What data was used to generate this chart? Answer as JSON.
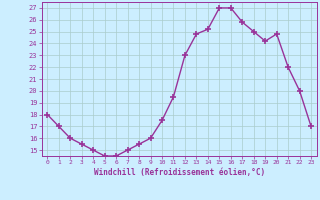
{
  "x": [
    0,
    1,
    2,
    3,
    4,
    5,
    6,
    7,
    8,
    9,
    10,
    11,
    12,
    13,
    14,
    15,
    16,
    17,
    18,
    19,
    20,
    21,
    22,
    23
  ],
  "y": [
    18,
    17,
    16,
    15.5,
    15,
    14.5,
    14.5,
    15,
    15.5,
    16,
    17.5,
    19.5,
    23,
    24.8,
    25.2,
    27,
    27,
    25.8,
    25,
    24.2,
    24.8,
    22,
    20,
    17
  ],
  "xlabel": "Windchill (Refroidissement éolien,°C)",
  "ylim": [
    14.5,
    27.5
  ],
  "xlim": [
    -0.5,
    23.5
  ],
  "yticks": [
    15,
    16,
    17,
    18,
    19,
    20,
    21,
    22,
    23,
    24,
    25,
    26,
    27
  ],
  "xticks": [
    0,
    1,
    2,
    3,
    4,
    5,
    6,
    7,
    8,
    9,
    10,
    11,
    12,
    13,
    14,
    15,
    16,
    17,
    18,
    19,
    20,
    21,
    22,
    23
  ],
  "line_color": "#993399",
  "marker": "+",
  "bg_color": "#cceeff",
  "grid_color": "#aacccc",
  "markersize": 4,
  "linewidth": 1.0
}
